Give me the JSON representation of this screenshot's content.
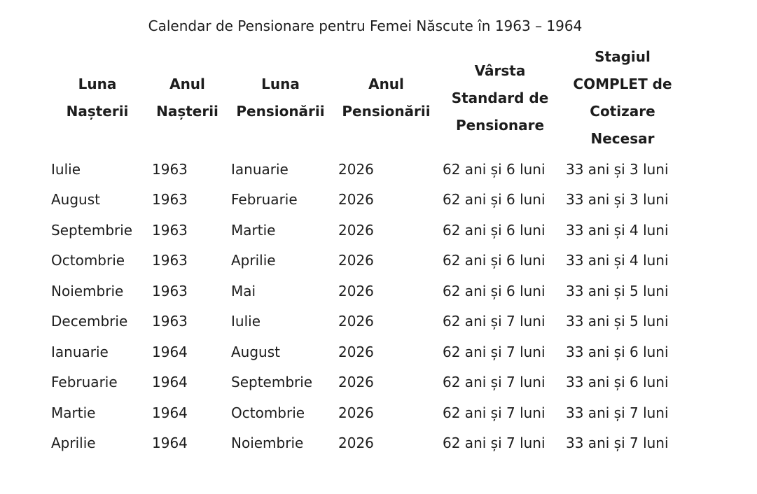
{
  "page": {
    "title": "Calendar de Pensionare pentru Femei Născute în 1963 – 1964",
    "background_color": "#ffffff",
    "text_color": "#1d1d1d"
  },
  "table": {
    "headers": [
      {
        "label": "Luna Nașterii",
        "lines": [
          "Luna",
          "Nașterii"
        ]
      },
      {
        "label": "Anul Nașterii",
        "lines": [
          "Anul",
          "Nașterii"
        ]
      },
      {
        "label": "Luna Pensionării",
        "lines": [
          "Luna",
          "Pensionării"
        ]
      },
      {
        "label": "Anul Pensionării",
        "lines": [
          "Anul",
          "Pensionării"
        ]
      },
      {
        "label": "Vârsta Standard de Pensionare",
        "lines": [
          "Vârsta",
          "Standard de",
          "Pensionare"
        ]
      },
      {
        "label": "Stagiul COMPLET de Cotizare Necesar",
        "lines": [
          "Stagiul",
          "COMPLET de",
          "Cotizare",
          "Necesar"
        ]
      }
    ],
    "rows": [
      [
        "Iulie",
        "1963",
        "Ianuarie",
        "2026",
        "62 ani și 6 luni",
        "33 ani și 3 luni"
      ],
      [
        "August",
        "1963",
        "Februarie",
        "2026",
        "62 ani și 6 luni",
        "33 ani și 3 luni"
      ],
      [
        "Septembrie",
        "1963",
        "Martie",
        "2026",
        "62 ani și 6 luni",
        "33 ani și 4 luni"
      ],
      [
        "Octombrie",
        "1963",
        "Aprilie",
        "2026",
        "62 ani și 6 luni",
        "33 ani și 4 luni"
      ],
      [
        "Noiembrie",
        "1963",
        "Mai",
        "2026",
        "62 ani și 6 luni",
        "33 ani și 5 luni"
      ],
      [
        "Decembrie",
        "1963",
        "Iulie",
        "2026",
        "62 ani și 7 luni",
        "33 ani și 5 luni"
      ],
      [
        "Ianuarie",
        "1964",
        "August",
        "2026",
        "62 ani și 7 luni",
        "33 ani și 6 luni"
      ],
      [
        "Februarie",
        "1964",
        "Septembrie",
        "2026",
        "62 ani și 7 luni",
        "33 ani și 6 luni"
      ],
      [
        "Martie",
        "1964",
        "Octombrie",
        "2026",
        "62 ani și 7 luni",
        "33 ani și 7 luni"
      ],
      [
        "Aprilie",
        "1964",
        "Noiembrie",
        "2026",
        "62 ani și 7 luni",
        "33 ani și 7 luni"
      ]
    ]
  }
}
